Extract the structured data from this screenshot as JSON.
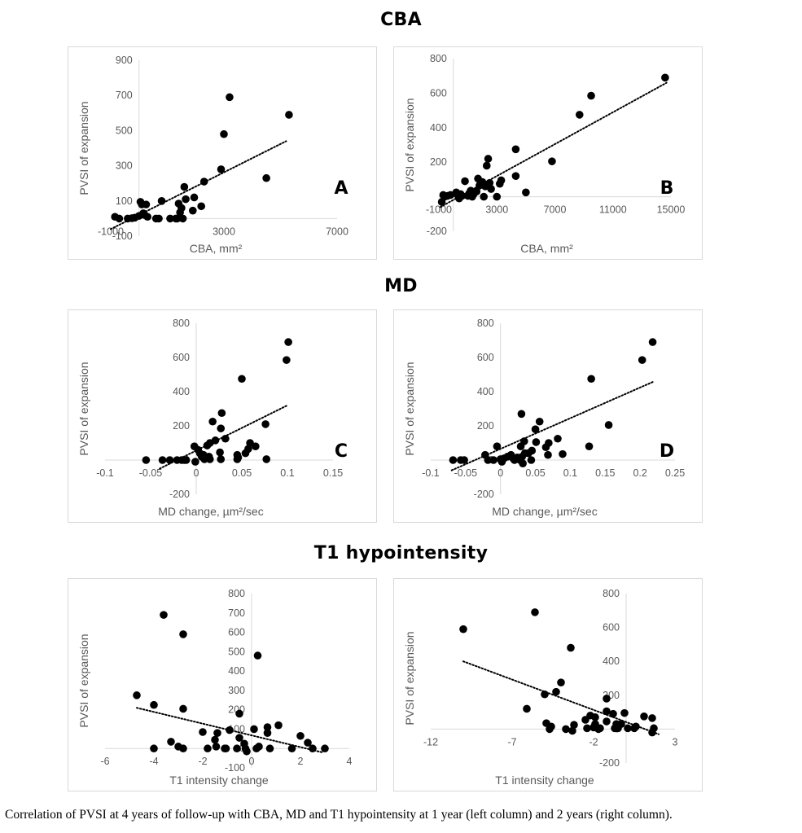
{
  "sections": [
    {
      "title": "CBA"
    },
    {
      "title": "MD"
    },
    {
      "title": "T1 hypointensity"
    }
  ],
  "caption": "Correlation of PVSI at 4 years of follow-up with CBA, MD and T1 hypointensity at 1 year (left column) and 2 years (right column).",
  "chart_data": [
    {
      "id": "A",
      "type": "scatter",
      "panel_label": "A",
      "title": "",
      "xlabel": "CBA, mm²",
      "ylabel": "PVSI of expansion",
      "xlim": [
        -1000,
        7000
      ],
      "ylim": [
        -100,
        900
      ],
      "xticks": [
        -1000,
        3000,
        7000
      ],
      "yticks": [
        -100,
        100,
        300,
        500,
        700,
        900
      ],
      "grid": false,
      "trendline": {
        "style": "dotted",
        "x": [
          -1000,
          5200
        ],
        "y": [
          -60,
          440
        ]
      },
      "points": [
        [
          -850,
          10
        ],
        [
          -700,
          0
        ],
        [
          -400,
          0
        ],
        [
          -250,
          2
        ],
        [
          -150,
          5
        ],
        [
          0,
          15
        ],
        [
          50,
          95
        ],
        [
          100,
          80
        ],
        [
          150,
          30
        ],
        [
          200,
          20
        ],
        [
          250,
          80
        ],
        [
          300,
          10
        ],
        [
          600,
          0
        ],
        [
          700,
          0
        ],
        [
          800,
          100
        ],
        [
          1100,
          0
        ],
        [
          1300,
          0
        ],
        [
          1400,
          85
        ],
        [
          1450,
          35
        ],
        [
          1500,
          60
        ],
        [
          1550,
          0
        ],
        [
          1600,
          180
        ],
        [
          1650,
          110
        ],
        [
          1900,
          45
        ],
        [
          1950,
          120
        ],
        [
          2200,
          70
        ],
        [
          2300,
          210
        ],
        [
          2900,
          280
        ],
        [
          3000,
          480
        ],
        [
          3200,
          690
        ],
        [
          4500,
          230
        ],
        [
          5300,
          590
        ],
        [
          1350,
          0
        ],
        [
          1450,
          5
        ]
      ]
    },
    {
      "id": "B",
      "type": "scatter",
      "panel_label": "B",
      "title": "",
      "xlabel": "CBA, mm²",
      "ylabel": "PVSI of expansion",
      "xlim": [
        -1000,
        15000
      ],
      "ylim": [
        -200,
        800
      ],
      "xticks": [
        -1000,
        3000,
        7000,
        11000,
        15000
      ],
      "yticks": [
        -200,
        0,
        200,
        400,
        600,
        800
      ],
      "grid": false,
      "trendline": {
        "style": "dotted",
        "x": [
          -900,
          14700
        ],
        "y": [
          -60,
          660
        ]
      },
      "points": [
        [
          -800,
          -30
        ],
        [
          -700,
          10
        ],
        [
          -600,
          0
        ],
        [
          -400,
          5
        ],
        [
          -200,
          10
        ],
        [
          200,
          25
        ],
        [
          300,
          10
        ],
        [
          400,
          -10
        ],
        [
          500,
          15
        ],
        [
          600,
          5
        ],
        [
          800,
          90
        ],
        [
          1000,
          5
        ],
        [
          1100,
          20
        ],
        [
          1200,
          35
        ],
        [
          1300,
          0
        ],
        [
          1400,
          15
        ],
        [
          1600,
          30
        ],
        [
          1700,
          105
        ],
        [
          1800,
          65
        ],
        [
          2000,
          85
        ],
        [
          2100,
          0
        ],
        [
          2200,
          60
        ],
        [
          2300,
          180
        ],
        [
          2400,
          220
        ],
        [
          2500,
          80
        ],
        [
          2600,
          45
        ],
        [
          3000,
          0
        ],
        [
          3200,
          75
        ],
        [
          3300,
          95
        ],
        [
          4300,
          275
        ],
        [
          4300,
          120
        ],
        [
          5000,
          25
        ],
        [
          6800,
          205
        ],
        [
          8700,
          475
        ],
        [
          9500,
          585
        ],
        [
          14600,
          690
        ]
      ]
    },
    {
      "id": "C",
      "type": "scatter",
      "panel_label": "C",
      "title": "",
      "xlabel": "MD change, µm²/sec",
      "ylabel": "PVSI of expansion",
      "xlim": [
        -0.1,
        0.15
      ],
      "ylim": [
        -200,
        800
      ],
      "xticks": [
        -0.1,
        -0.05,
        0,
        0.05,
        0.1,
        0.15
      ],
      "yticks": [
        -200,
        0,
        200,
        400,
        600,
        800
      ],
      "grid": false,
      "trendline": {
        "style": "dotted",
        "x": [
          -0.04,
          0.1
        ],
        "y": [
          -50,
          320
        ]
      },
      "points": [
        [
          -0.055,
          0
        ],
        [
          -0.037,
          0
        ],
        [
          -0.029,
          0
        ],
        [
          -0.021,
          0
        ],
        [
          -0.016,
          0
        ],
        [
          -0.013,
          0
        ],
        [
          -0.011,
          0
        ],
        [
          -0.002,
          80
        ],
        [
          -0.001,
          -10
        ],
        [
          0.002,
          60
        ],
        [
          0.004,
          40
        ],
        [
          0.006,
          20
        ],
        [
          0.008,
          30
        ],
        [
          0.009,
          5
        ],
        [
          0.012,
          85
        ],
        [
          0.014,
          20
        ],
        [
          0.015,
          100
        ],
        [
          0.015,
          5
        ],
        [
          0.018,
          225
        ],
        [
          0.021,
          115
        ],
        [
          0.026,
          45
        ],
        [
          0.027,
          185
        ],
        [
          0.027,
          5
        ],
        [
          0.028,
          275
        ],
        [
          0.032,
          125
        ],
        [
          0.045,
          30
        ],
        [
          0.045,
          5
        ],
        [
          0.046,
          15
        ],
        [
          0.05,
          475
        ],
        [
          0.054,
          40
        ],
        [
          0.057,
          65
        ],
        [
          0.059,
          100
        ],
        [
          0.065,
          80
        ],
        [
          0.076,
          210
        ],
        [
          0.077,
          5
        ],
        [
          0.099,
          585
        ],
        [
          0.101,
          690
        ]
      ]
    },
    {
      "id": "D",
      "type": "scatter",
      "panel_label": "D",
      "title": "",
      "xlabel": "MD change, µm²/sec",
      "ylabel": "PVSI of expansion",
      "xlim": [
        -0.1,
        0.25
      ],
      "ylim": [
        -200,
        800
      ],
      "xticks": [
        -0.1,
        -0.05,
        0,
        0.05,
        0.1,
        0.15,
        0.2,
        0.25
      ],
      "yticks": [
        -200,
        0,
        200,
        400,
        600,
        800
      ],
      "grid": false,
      "trendline": {
        "style": "dotted",
        "x": [
          -0.07,
          0.22
        ],
        "y": [
          -60,
          460
        ]
      },
      "points": [
        [
          -0.068,
          0
        ],
        [
          -0.057,
          0
        ],
        [
          -0.052,
          0
        ],
        [
          -0.022,
          30
        ],
        [
          -0.018,
          0
        ],
        [
          -0.01,
          0
        ],
        [
          -0.005,
          80
        ],
        [
          0,
          5
        ],
        [
          0.002,
          -10
        ],
        [
          0.005,
          10
        ],
        [
          0.01,
          20
        ],
        [
          0.015,
          30
        ],
        [
          0.018,
          10
        ],
        [
          0.02,
          0
        ],
        [
          0.024,
          15
        ],
        [
          0.028,
          0
        ],
        [
          0.029,
          80
        ],
        [
          0.03,
          270
        ],
        [
          0.031,
          20
        ],
        [
          0.032,
          -20
        ],
        [
          0.034,
          110
        ],
        [
          0.035,
          40
        ],
        [
          0.04,
          40
        ],
        [
          0.044,
          0
        ],
        [
          0.045,
          55
        ],
        [
          0.05,
          180
        ],
        [
          0.051,
          105
        ],
        [
          0.056,
          225
        ],
        [
          0.065,
          75
        ],
        [
          0.068,
          30
        ],
        [
          0.069,
          100
        ],
        [
          0.082,
          125
        ],
        [
          0.089,
          35
        ],
        [
          0.127,
          80
        ],
        [
          0.13,
          475
        ],
        [
          0.155,
          205
        ],
        [
          0.203,
          585
        ],
        [
          0.218,
          690
        ]
      ]
    },
    {
      "id": "E",
      "type": "scatter",
      "panel_label": "",
      "title": "",
      "xlabel": "T1 intensity change",
      "ylabel": "PVSI of expansion",
      "xlim": [
        -6,
        4
      ],
      "ylim": [
        -100,
        800
      ],
      "xticks": [
        -6,
        -4,
        -2,
        0,
        2,
        4
      ],
      "yticks": [
        -100,
        0,
        100,
        200,
        300,
        400,
        500,
        600,
        700,
        800
      ],
      "grid": false,
      "trendline": {
        "style": "dotted",
        "x": [
          -4.7,
          2.9
        ],
        "y": [
          210,
          -20
        ]
      },
      "points": [
        [
          -4.7,
          275
        ],
        [
          -4.0,
          225
        ],
        [
          -4.0,
          0
        ],
        [
          -3.6,
          690
        ],
        [
          -3.3,
          35
        ],
        [
          -3.0,
          10
        ],
        [
          -2.8,
          590
        ],
        [
          -2.8,
          205
        ],
        [
          -2.8,
          0
        ],
        [
          -2.0,
          85
        ],
        [
          -1.8,
          0
        ],
        [
          -1.5,
          45
        ],
        [
          -1.45,
          10
        ],
        [
          -1.4,
          80
        ],
        [
          -1.1,
          0
        ],
        [
          -1.05,
          0
        ],
        [
          -0.9,
          95
        ],
        [
          -0.6,
          0
        ],
        [
          -0.5,
          55
        ],
        [
          -0.5,
          180
        ],
        [
          -0.3,
          25
        ],
        [
          -0.25,
          0
        ],
        [
          -0.2,
          -15
        ],
        [
          0.1,
          100
        ],
        [
          0.2,
          0
        ],
        [
          0.25,
          480
        ],
        [
          0.3,
          10
        ],
        [
          0.65,
          110
        ],
        [
          0.65,
          80
        ],
        [
          0.75,
          0
        ],
        [
          1.1,
          120
        ],
        [
          1.65,
          0
        ],
        [
          2.0,
          65
        ],
        [
          2.3,
          30
        ],
        [
          2.5,
          0
        ],
        [
          3.0,
          0
        ]
      ]
    },
    {
      "id": "F",
      "type": "scatter",
      "panel_label": "",
      "title": "",
      "xlabel": "T1 intensity change",
      "ylabel": "PVSI of expansion",
      "xlim": [
        -12,
        3
      ],
      "ylim": [
        -200,
        800
      ],
      "xticks": [
        -12,
        -7,
        -2,
        3
      ],
      "yticks": [
        -200,
        0,
        200,
        400,
        600,
        800
      ],
      "grid": false,
      "trendline": {
        "style": "dotted",
        "x": [
          -10,
          2
        ],
        "y": [
          400,
          -30
        ]
      },
      "points": [
        [
          -10,
          590
        ],
        [
          -6.1,
          120
        ],
        [
          -5.6,
          690
        ],
        [
          -5.0,
          205
        ],
        [
          -4.9,
          35
        ],
        [
          -4.7,
          0
        ],
        [
          -4.6,
          15
        ],
        [
          -4.3,
          220
        ],
        [
          -4.0,
          275
        ],
        [
          -3.7,
          0
        ],
        [
          -3.4,
          480
        ],
        [
          -3.3,
          -10
        ],
        [
          -3.2,
          25
        ],
        [
          -2.5,
          55
        ],
        [
          -2.4,
          5
        ],
        [
          -2.2,
          80
        ],
        [
          -2.0,
          10
        ],
        [
          -1.9,
          70
        ],
        [
          -1.9,
          30
        ],
        [
          -1.7,
          0
        ],
        [
          -1.6,
          5
        ],
        [
          -1.2,
          45
        ],
        [
          -1.2,
          180
        ],
        [
          -1.2,
          105
        ],
        [
          -0.8,
          90
        ],
        [
          -0.7,
          5
        ],
        [
          -0.6,
          30
        ],
        [
          -0.5,
          5
        ],
        [
          -0.3,
          30
        ],
        [
          -0.1,
          95
        ],
        [
          0.1,
          5
        ],
        [
          0.5,
          5
        ],
        [
          0.6,
          15
        ],
        [
          1.1,
          75
        ],
        [
          1.6,
          65
        ],
        [
          1.6,
          -20
        ],
        [
          1.7,
          5
        ]
      ]
    }
  ]
}
